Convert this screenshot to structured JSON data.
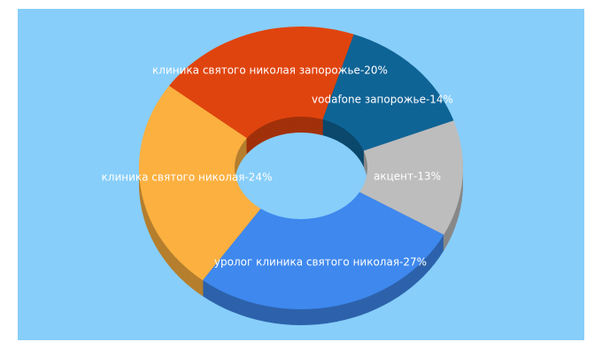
{
  "chart_data": {
    "type": "donut3d",
    "values": [
      14,
      13,
      27,
      24,
      20
    ],
    "value_labels": [
      "vodafone запорожье-14%",
      "акцент-13%",
      "уролог клиника святого николая-27%",
      "клиника святого николая-24%",
      "клиника святого николая запорожье-20%"
    ],
    "colors": [
      "#0f6496",
      "#bdbdbd",
      "#3e88ee",
      "#fbb040",
      "#e0440e"
    ]
  }
}
